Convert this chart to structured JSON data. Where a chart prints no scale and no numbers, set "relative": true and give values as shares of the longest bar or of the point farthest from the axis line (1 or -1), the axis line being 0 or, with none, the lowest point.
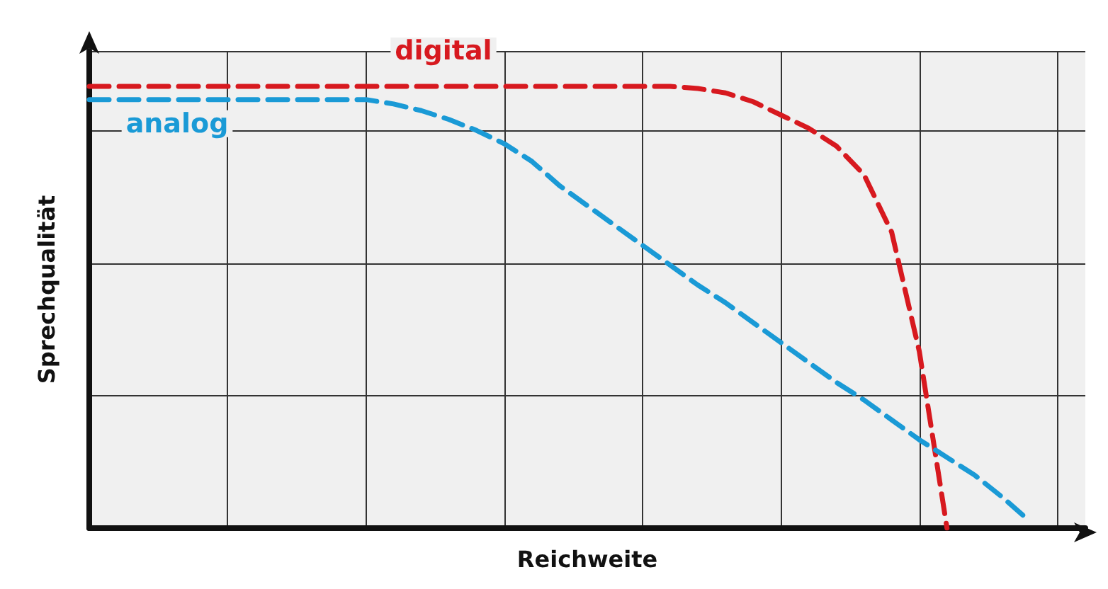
{
  "chart_data": {
    "type": "line",
    "relative": true,
    "xlabel": "Reichweite",
    "ylabel": "Sprechqualität",
    "categories": [
      null,
      null,
      null,
      null,
      null,
      null,
      null,
      null,
      null,
      null,
      null,
      null,
      null,
      null,
      null,
      null,
      null,
      null,
      null,
      null,
      null,
      null,
      null,
      null,
      null,
      null,
      null,
      null,
      null,
      null,
      null,
      null,
      null,
      null,
      null,
      null,
      null
    ],
    "grid": true,
    "legend": false,
    "marker": "none",
    "line_style": "dashed",
    "series": [
      {
        "name": "digital",
        "color": "#d7191f",
        "values": [
          1,
          1,
          1,
          1,
          1,
          1,
          1,
          1,
          1,
          1,
          1,
          1,
          1,
          1,
          1,
          1,
          1,
          1,
          1,
          1,
          1,
          1,
          0.995,
          0.985,
          0.965,
          0.935,
          0.905,
          0.865,
          0.8,
          0.67,
          0.4,
          0,
          null,
          null,
          null,
          null,
          null
        ]
      },
      {
        "name": "analog",
        "color": "#1a9ad6",
        "values": [
          0.97,
          0.97,
          0.97,
          0.97,
          0.97,
          0.97,
          0.97,
          0.97,
          0.97,
          0.97,
          0.97,
          0.96,
          0.945,
          0.925,
          0.9,
          0.87,
          0.83,
          0.775,
          0.73,
          0.685,
          0.64,
          0.595,
          0.55,
          0.51,
          0.465,
          0.42,
          0.375,
          0.33,
          0.29,
          0.245,
          0.2,
          0.16,
          0.12,
          0.07,
          0.015,
          null,
          null
        ]
      }
    ]
  }
}
